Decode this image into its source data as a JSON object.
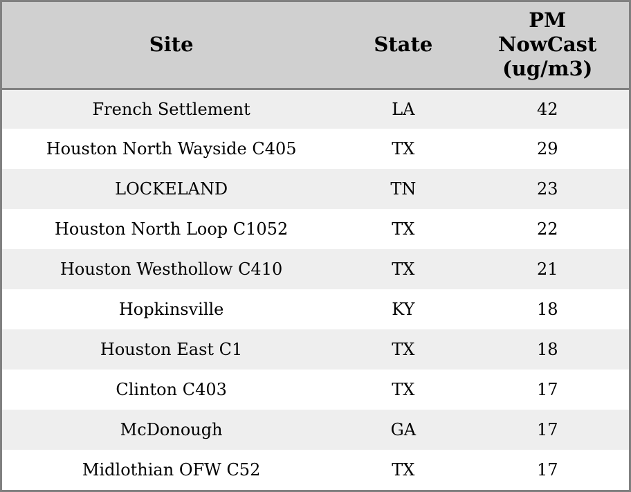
{
  "colors": {
    "outer_border": "#808080",
    "header_divider": "#808080",
    "header_bg": "#d0d0d0",
    "row_alt_bg": "#eeeeee",
    "row_bg": "#ffffff",
    "text": "#000000"
  },
  "chart_data": {
    "type": "table",
    "columns": [
      {
        "key": "site",
        "label": "Site"
      },
      {
        "key": "state",
        "label": "State"
      },
      {
        "key": "pm",
        "label": "PM NowCast (ug/m3)"
      }
    ],
    "rows": [
      {
        "site": "French Settlement",
        "state": "LA",
        "pm": "42"
      },
      {
        "site": "Houston North Wayside C405",
        "state": "TX",
        "pm": "29"
      },
      {
        "site": "LOCKELAND",
        "state": "TN",
        "pm": "23"
      },
      {
        "site": "Houston North Loop C1052",
        "state": "TX",
        "pm": "22"
      },
      {
        "site": "Houston Westhollow C410",
        "state": "TX",
        "pm": "21"
      },
      {
        "site": "Hopkinsville",
        "state": "KY",
        "pm": "18"
      },
      {
        "site": "Houston East C1",
        "state": "TX",
        "pm": "18"
      },
      {
        "site": "Clinton C403",
        "state": "TX",
        "pm": "17"
      },
      {
        "site": "McDonough",
        "state": "GA",
        "pm": "17"
      },
      {
        "site": "Midlothian OFW C52",
        "state": "TX",
        "pm": "17"
      }
    ]
  }
}
